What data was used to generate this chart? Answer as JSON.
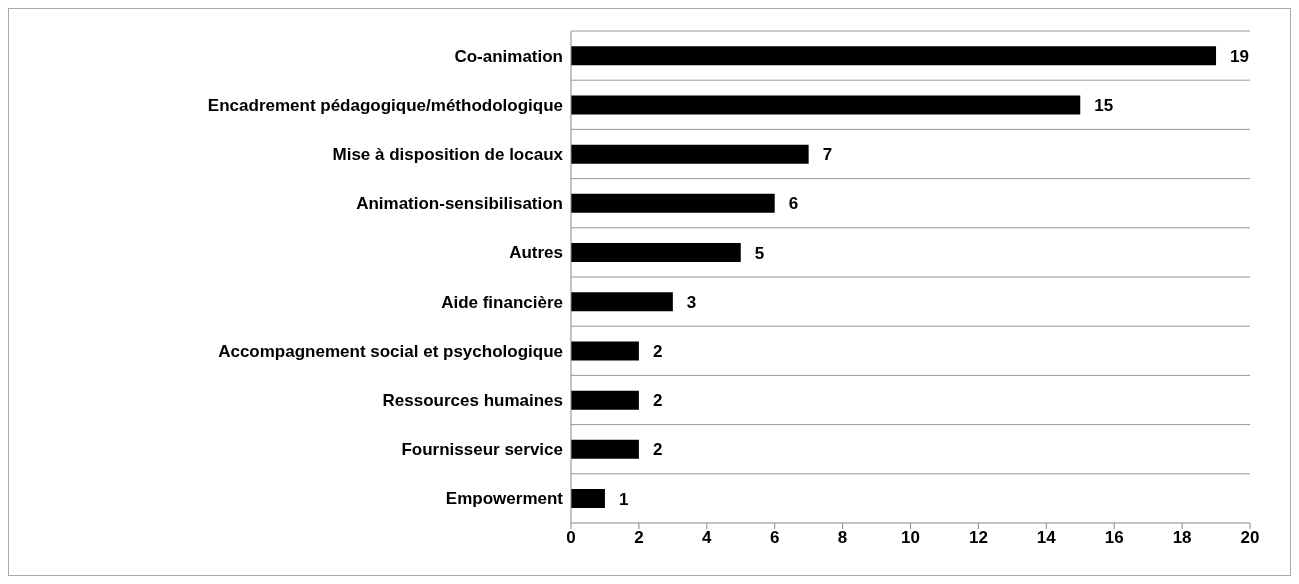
{
  "chart_data": {
    "type": "bar",
    "orientation": "horizontal",
    "categories": [
      "Co-animation",
      "Encadrement pédagogique/méthodologique",
      "Mise à disposition de locaux",
      "Animation-sensibilisation",
      "Autres",
      "Aide financière",
      "Accompagnement social et psychologique",
      "Ressources humaines",
      "Fournisseur service",
      "Empowerment"
    ],
    "values": [
      19,
      15,
      7,
      6,
      5,
      3,
      2,
      2,
      2,
      1
    ],
    "color": "#000000",
    "xlim": [
      0,
      20
    ],
    "xticks": [
      0,
      2,
      4,
      6,
      8,
      10,
      12,
      14,
      16,
      18,
      20
    ],
    "grid": "y",
    "data_labels": true
  }
}
